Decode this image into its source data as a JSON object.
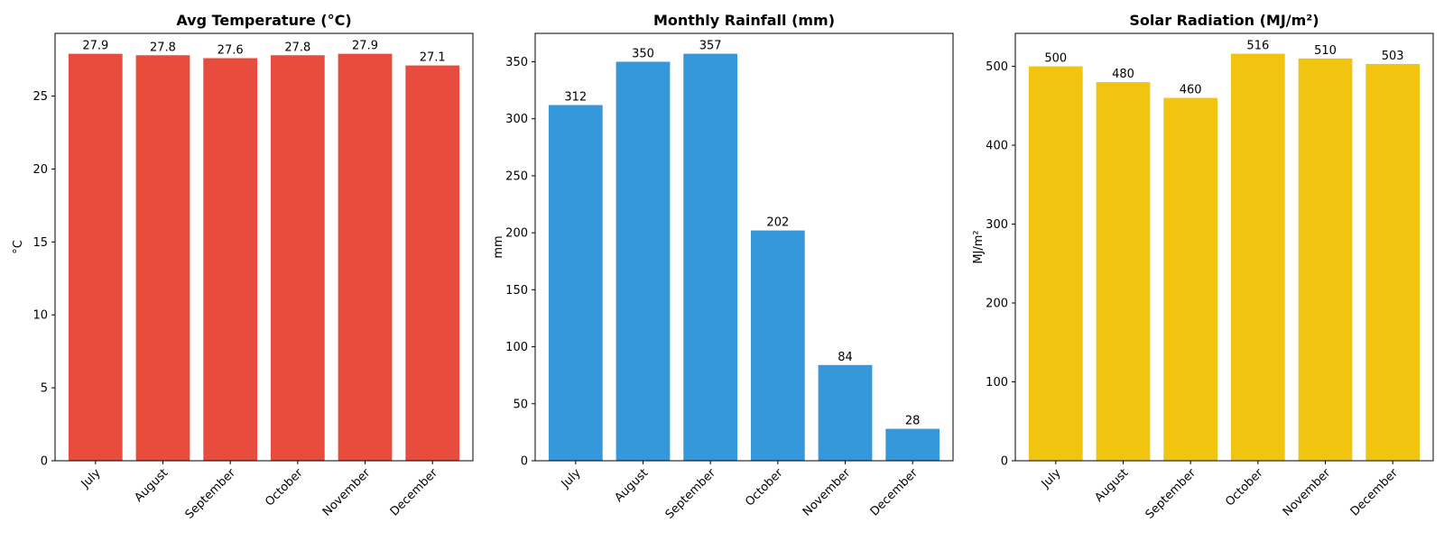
{
  "chart_data": [
    {
      "type": "bar",
      "title": "Avg Temperature (°C)",
      "xlabel": "",
      "ylabel": "°C",
      "categories": [
        "July",
        "August",
        "September",
        "October",
        "November",
        "December"
      ],
      "values": [
        27.9,
        27.8,
        27.6,
        27.8,
        27.9,
        27.1
      ],
      "value_labels": [
        "27.9",
        "27.8",
        "27.6",
        "27.8",
        "27.9",
        "27.1"
      ],
      "ylim": [
        0,
        29.3
      ],
      "yticks": [
        0,
        5,
        10,
        15,
        20,
        25
      ],
      "ytick_labels": [
        "0",
        "5",
        "10",
        "15",
        "20",
        "25"
      ],
      "color": "#e74c3c",
      "grid": false
    },
    {
      "type": "bar",
      "title": "Monthly Rainfall (mm)",
      "xlabel": "",
      "ylabel": "mm",
      "categories": [
        "July",
        "August",
        "September",
        "October",
        "November",
        "December"
      ],
      "values": [
        312,
        350,
        357,
        202,
        84,
        28
      ],
      "value_labels": [
        "312",
        "350",
        "357",
        "202",
        "84",
        "28"
      ],
      "ylim": [
        0,
        374.9
      ],
      "yticks": [
        0,
        50,
        100,
        150,
        200,
        250,
        300,
        350
      ],
      "ytick_labels": [
        "0",
        "50",
        "100",
        "150",
        "200",
        "250",
        "300",
        "350"
      ],
      "color": "#3498db",
      "grid": false
    },
    {
      "type": "bar",
      "title": "Solar Radiation (MJ/m²)",
      "xlabel": "",
      "ylabel": "MJ/m²",
      "categories": [
        "July",
        "August",
        "September",
        "October",
        "November",
        "December"
      ],
      "values": [
        500,
        480,
        460,
        516,
        510,
        503
      ],
      "value_labels": [
        "500",
        "480",
        "460",
        "516",
        "510",
        "503"
      ],
      "ylim": [
        0,
        541.8
      ],
      "yticks": [
        0,
        100,
        200,
        300,
        400,
        500
      ],
      "ytick_labels": [
        "0",
        "100",
        "200",
        "300",
        "400",
        "500"
      ],
      "color": "#f1c40f",
      "grid": false
    }
  ]
}
